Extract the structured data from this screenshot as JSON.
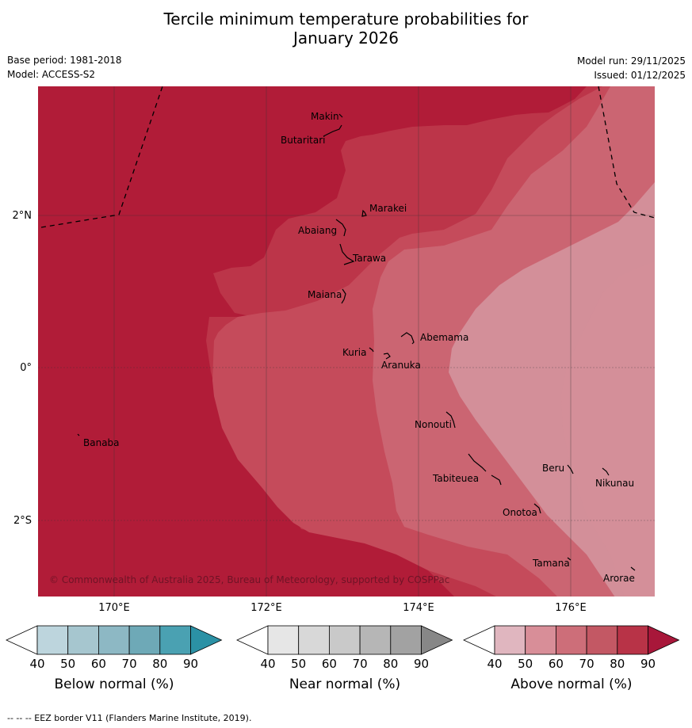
{
  "title_line1": "Tercile minimum temperature probabilities for",
  "title_line2": "January 2026",
  "base_period": "Base period: 1981-2018",
  "model": "Model: ACCESS-S2",
  "model_run": "Model run: 29/11/2025",
  "issued": "Issued: 01/12/2025",
  "copyright": "© Commonwealth of Australia 2025, Bureau of Meteorology, supported by COSPPac",
  "eez_note": "--  --  -- EEZ border V11 (Flanders Marine Institute, 2019).",
  "lat_labels": [
    "2°N",
    "0°",
    "2°S"
  ],
  "lon_labels": [
    "170°E",
    "172°E",
    "174°E",
    "176°E"
  ],
  "islands": [
    {
      "name": "Makin"
    },
    {
      "name": "Butaritari"
    },
    {
      "name": "Marakei"
    },
    {
      "name": "Abaiang"
    },
    {
      "name": "Tarawa"
    },
    {
      "name": "Maiana"
    },
    {
      "name": "Abemama"
    },
    {
      "name": "Kuria"
    },
    {
      "name": "Aranuka"
    },
    {
      "name": "Banaba"
    },
    {
      "name": "Nonouti"
    },
    {
      "name": "Beru"
    },
    {
      "name": "Nikunau"
    },
    {
      "name": "Tabiteuea"
    },
    {
      "name": "Onotoa"
    },
    {
      "name": "Tamana"
    },
    {
      "name": "Arorae"
    }
  ],
  "colorbars": [
    {
      "label": "Below normal (%)",
      "ticks": [
        "40",
        "50",
        "60",
        "70",
        "80",
        "90"
      ],
      "colors": [
        "#bdd5dd",
        "#a6c6cf",
        "#8db8c4",
        "#6ea9b7",
        "#4aa1b2",
        "#2b91a5"
      ]
    },
    {
      "label": "Near normal (%)",
      "ticks": [
        "40",
        "50",
        "60",
        "70",
        "80",
        "90"
      ],
      "colors": [
        "#e6e6e6",
        "#d8d8d8",
        "#c9c9c9",
        "#b6b6b6",
        "#a2a2a2",
        "#878787"
      ]
    },
    {
      "label": "Above normal (%)",
      "ticks": [
        "40",
        "50",
        "60",
        "70",
        "80",
        "90"
      ],
      "colors": [
        "#e0b6bf",
        "#d88e98",
        "#cd6e79",
        "#c35864",
        "#b83347",
        "#a8173a"
      ]
    }
  ],
  "colors": {
    "a90": "#b11c38",
    "a80": "#bc3549",
    "a70": "#c54b5b",
    "a60": "#cb6572",
    "a50": "#d38f99"
  }
}
